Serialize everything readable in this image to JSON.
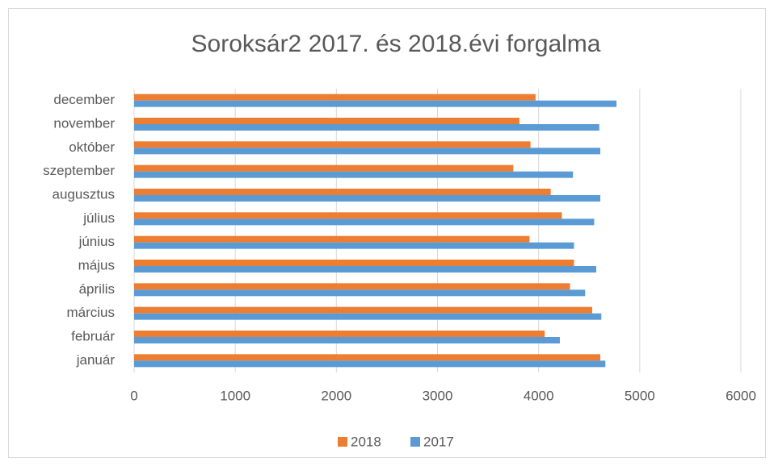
{
  "chart_data": {
    "type": "bar",
    "orientation": "horizontal",
    "title": "Soroksár2 2017. és 2018.évi forgalma",
    "categories": [
      "január",
      "február",
      "március",
      "április",
      "május",
      "június",
      "július",
      "augusztus",
      "szeptember",
      "október",
      "november",
      "december"
    ],
    "series": [
      {
        "name": "2018",
        "color": "#ed7d31",
        "values": [
          4610,
          4060,
          4530,
          4310,
          4350,
          3910,
          4230,
          4120,
          3750,
          3920,
          3810,
          3970
        ]
      },
      {
        "name": "2017",
        "color": "#5b9bd5",
        "values": [
          4660,
          4210,
          4620,
          4460,
          4570,
          4350,
          4550,
          4610,
          4340,
          4610,
          4600,
          4770
        ]
      }
    ],
    "xlim": [
      0,
      6000
    ],
    "xticks": [
      0,
      1000,
      2000,
      3000,
      4000,
      5000,
      6000
    ],
    "grid": true,
    "legend": "bottom"
  }
}
